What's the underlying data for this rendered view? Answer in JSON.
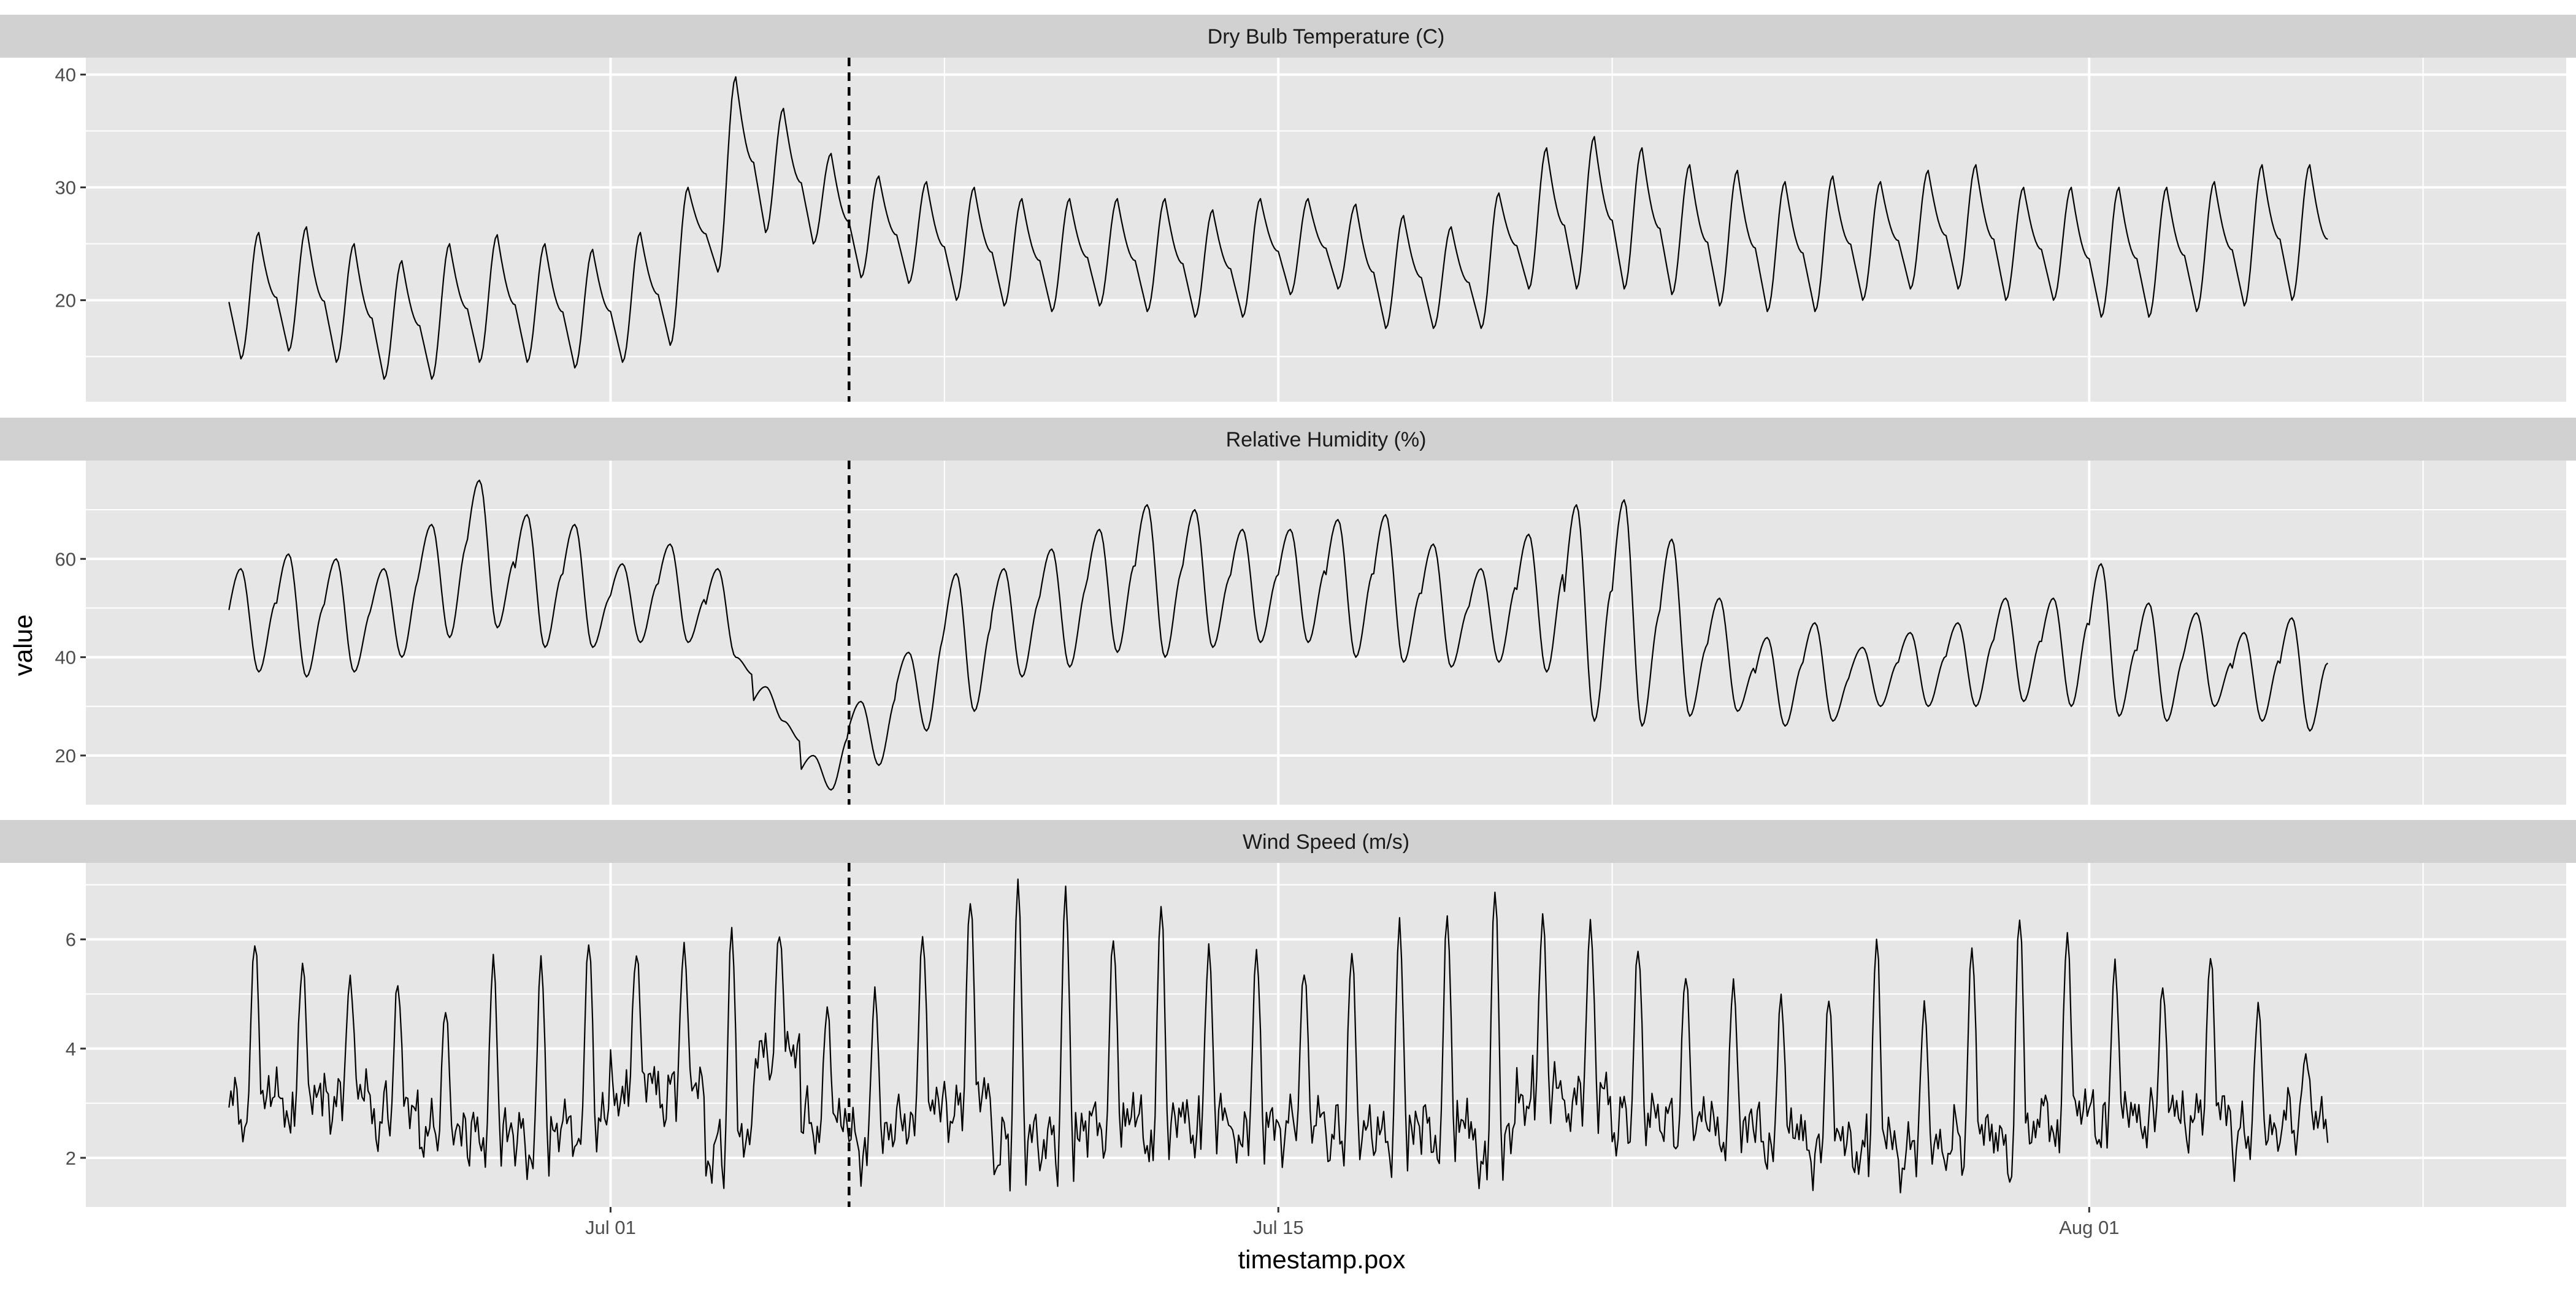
{
  "chart_data": {
    "type": "line",
    "layout": "faceted-vertical",
    "xlabel": "timestamp.pox",
    "ylabel": "value",
    "x_axis": {
      "type": "date",
      "range": [
        "2021-06-20",
        "2021-08-11"
      ],
      "ticks": [
        {
          "date": "2021-07-01",
          "label": "Jul 01"
        },
        {
          "date": "2021-07-15",
          "label": "Jul 15"
        },
        {
          "date": "2021-08-01",
          "label": "Aug 01"
        }
      ],
      "minor_ticks": [
        "2021-07-08",
        "2021-07-22",
        "2021-08-08"
      ]
    },
    "data_start": "2021-06-23",
    "data_end": "2021-08-06",
    "reference_line": {
      "date": "2021-07-06",
      "style": "dashed",
      "color": "#000000"
    },
    "line_color": "#000000",
    "panel_background": "#e6e6e6",
    "strip_background": "#d1d1d1",
    "grid_color": "#ffffff",
    "grid": true,
    "legend": "none",
    "facets": [
      {
        "name": "Dry Bulb Temperature (C)",
        "ylim": [
          11,
          41.5
        ],
        "y_ticks": [
          20,
          30,
          40
        ],
        "y_minor_ticks": [
          15,
          25,
          35
        ],
        "daily_max": [
          26,
          26.5,
          25,
          23.5,
          25,
          25.8,
          25,
          24.5,
          26,
          30,
          39.8,
          37,
          33,
          31,
          30.5,
          30,
          29,
          29,
          29,
          29,
          28,
          29,
          29,
          28.5,
          27.5,
          26.5,
          29.5,
          33.5,
          34.5,
          33.5,
          32,
          31.5,
          30.5,
          31,
          30.5,
          31.5,
          32,
          30,
          30,
          30,
          30,
          30.5,
          32,
          32
        ],
        "daily_min": [
          14.8,
          15.5,
          14.5,
          13,
          13,
          14.5,
          14.5,
          14,
          14.5,
          16,
          22.5,
          26,
          25,
          22,
          21.5,
          20,
          19.5,
          19,
          19.5,
          19,
          18.5,
          18.5,
          20.5,
          21,
          17.5,
          17.5,
          17.5,
          21,
          21,
          21,
          20.5,
          19.5,
          19,
          19,
          20,
          21,
          21,
          20,
          20,
          18.5,
          18.5,
          19,
          19.5,
          20
        ]
      },
      {
        "name": "Relative Humidity (%)",
        "ylim": [
          10,
          80
        ],
        "y_ticks": [
          20,
          40,
          60
        ],
        "y_minor_ticks": [
          30,
          50,
          70
        ],
        "daily_max": [
          58,
          61,
          60,
          58,
          67,
          76,
          69,
          67,
          59,
          63,
          58,
          34,
          20,
          31,
          41,
          57,
          58,
          62,
          66,
          71,
          70,
          66,
          66,
          68,
          69,
          63,
          58,
          65,
          71,
          72,
          64,
          52,
          44,
          47,
          42,
          45,
          47,
          52,
          52,
          59,
          51,
          49,
          45,
          48
        ],
        "daily_min": [
          37,
          36,
          37,
          40,
          44,
          46,
          42,
          42,
          43,
          43,
          40,
          27,
          13,
          18,
          25,
          29,
          36,
          38,
          41,
          40,
          42,
          43,
          43,
          40,
          39,
          38,
          39,
          37,
          27,
          26,
          28,
          29,
          26,
          27,
          30,
          30,
          30,
          31,
          30,
          28,
          27,
          30,
          27,
          25
        ]
      },
      {
        "name": "Wind Speed (m/s)",
        "ylim": [
          1.1,
          7.4
        ],
        "y_ticks": [
          2,
          4,
          6
        ],
        "y_minor_ticks": [
          3,
          5,
          7
        ],
        "daily_max": [
          6,
          5.6,
          5.3,
          5.2,
          4.7,
          5.6,
          5.6,
          6,
          5.8,
          5.9,
          6.2,
          6.1,
          4.7,
          5,
          6.1,
          6.8,
          7.1,
          6.9,
          6,
          6.6,
          5.8,
          5.8,
          5.5,
          5.8,
          6.3,
          6.4,
          6.9,
          6.4,
          6.3,
          5.9,
          5.4,
          5.2,
          4.9,
          4.9,
          6,
          4.8,
          5.9,
          6.5,
          6.1,
          5.5,
          5.1,
          5.7,
          4.8,
          3.9
        ],
        "daily_min": [
          2.5,
          2.6,
          2.8,
          2.4,
          2.1,
          1.9,
          1.8,
          2.1,
          2.9,
          2.8,
          1.5,
          3.5,
          2.3,
          1.9,
          2.3,
          2.4,
          1.5,
          1.6,
          2.1,
          1.9,
          2.2,
          2.0,
          2.2,
          1.9,
          1.8,
          1.9,
          1.5,
          2.7,
          2.6,
          2.2,
          2.2,
          2.1,
          2.0,
          1.8,
          1.6,
          1.7,
          1.8,
          1.6,
          2.2,
          2.3,
          2.4,
          2.3,
          2.0,
          2.5
        ]
      }
    ]
  }
}
